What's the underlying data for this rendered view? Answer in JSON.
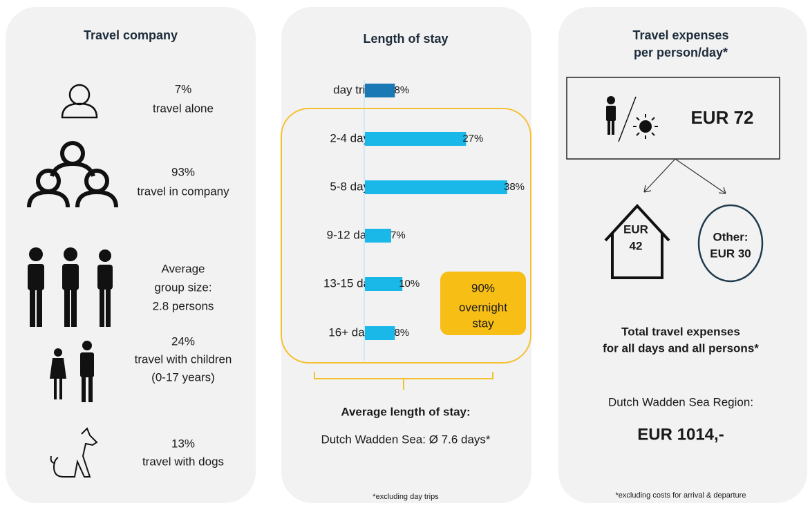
{
  "company": {
    "title": "Travel company",
    "items": [
      {
        "lines": [
          "7%",
          "travel alone"
        ]
      },
      {
        "lines": [
          "93%",
          "travel in company"
        ]
      },
      {
        "lines": [
          "Average",
          "group size:",
          "2.8 persons"
        ]
      },
      {
        "lines": [
          "24%",
          "travel with children",
          "(0-17 years)"
        ]
      },
      {
        "lines": [
          "13%",
          "travel with dogs"
        ]
      }
    ]
  },
  "chart_data": {
    "type": "bar",
    "title": "Length of stay",
    "categories": [
      "day trip",
      "2-4 days",
      "5-8 days",
      "9-12 days",
      "13-15 days",
      "16+ days"
    ],
    "values": [
      8,
      27,
      38,
      7,
      10,
      8
    ],
    "value_labels": [
      "8%",
      "27%",
      "38%",
      "7%",
      "10%",
      "8%"
    ],
    "colors": [
      "#1a78b4",
      "#1ab8e8",
      "#1ab8e8",
      "#1ab8e8",
      "#1ab8e8",
      "#1ab8e8"
    ],
    "xlim": [
      0,
      38
    ],
    "annotation": [
      "90%",
      "overnight",
      "stay"
    ],
    "summary_title": "Average length of stay:",
    "summary": "Dutch Wadden Sea: Ø 7.6 days*",
    "footnote": "*excluding day trips"
  },
  "expenses": {
    "title": [
      "Travel expenses",
      "per person/day*"
    ],
    "per_day": "EUR 72",
    "accommodation": [
      "EUR",
      "42"
    ],
    "other": [
      "Other:",
      "EUR 30"
    ],
    "total_title": [
      "Total travel expenses",
      "for all days and all persons*"
    ],
    "region": "Dutch Wadden Sea Region:",
    "total": "EUR 1014,-",
    "footnote": "*excluding costs for arrival & departure"
  }
}
